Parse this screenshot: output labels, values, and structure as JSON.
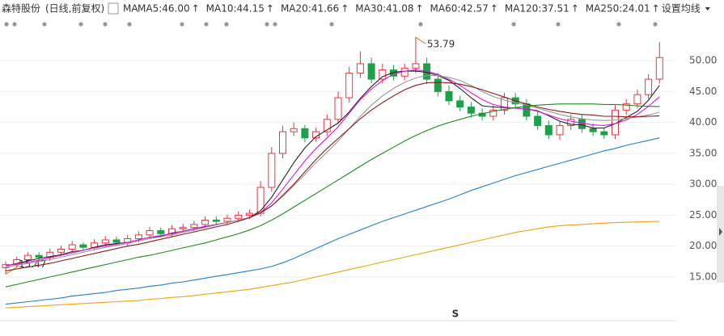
{
  "chart_data": {
    "type": "candlestick",
    "title": "森特股份",
    "subtitle": "(日线,前复权)",
    "ma_label": "MA",
    "settings_label": "设置均线",
    "max_label": "53.79",
    "min_label": "15.47",
    "bottom_marker": "S",
    "up_color": "#f0323c",
    "down_color": "#1ea04a",
    "ylim": [
      9.5,
      57.2
    ],
    "yticks": [
      {
        "value": 15,
        "label": "15.00"
      },
      {
        "value": 20,
        "label": "20.00"
      },
      {
        "value": 25,
        "label": "25.00"
      },
      {
        "value": 30,
        "label": "30.00"
      },
      {
        "value": 35,
        "label": "35.00"
      },
      {
        "value": 40,
        "label": "40.00"
      },
      {
        "value": 45,
        "label": "45.00"
      },
      {
        "value": 50,
        "label": "50.00"
      }
    ],
    "grid": true,
    "candles": {
      "open": [
        16.5,
        17.0,
        17.8,
        18.5,
        18.2,
        19.0,
        19.5,
        20.2,
        19.8,
        20.5,
        21.0,
        20.6,
        21.2,
        21.8,
        22.5,
        22.0,
        22.8,
        23.0,
        23.5,
        24.2,
        24.0,
        24.5,
        25.0,
        25.3,
        29.5,
        35.0,
        38.5,
        39.0,
        37.5,
        38.5,
        40.5,
        44.0,
        48.0,
        49.5,
        47.0,
        48.5,
        47.5,
        48.8,
        49.5,
        47.0,
        45.0,
        43.5,
        42.5,
        41.5,
        41.0,
        42.0,
        44.0,
        43.0,
        41.0,
        39.5,
        38.0,
        39.5,
        40.5,
        39.0,
        38.5,
        38.0,
        42.0,
        43.0,
        44.5,
        47.0
      ],
      "high": [
        17.5,
        18.3,
        19.0,
        19.0,
        19.6,
        20.1,
        20.8,
        20.6,
        21.1,
        21.6,
        21.5,
        21.8,
        22.4,
        23.1,
        23.0,
        23.4,
        23.6,
        24.1,
        24.8,
        24.8,
        25.1,
        25.6,
        25.9,
        30.5,
        36.0,
        39.5,
        40.0,
        39.6,
        39.2,
        41.3,
        45.0,
        49.0,
        51.5,
        50.5,
        49.5,
        49.3,
        49.5,
        53.79,
        50.5,
        48.0,
        46.0,
        44.3,
        43.3,
        42.3,
        42.8,
        44.8,
        44.8,
        43.8,
        41.8,
        40.3,
        40.2,
        41.3,
        41.3,
        39.8,
        39.2,
        42.8,
        43.8,
        45.3,
        47.8,
        53.0
      ],
      "low": [
        15.47,
        16.5,
        17.2,
        17.6,
        17.6,
        18.4,
        18.9,
        19.3,
        19.3,
        19.9,
        20.0,
        20.0,
        20.6,
        21.2,
        21.4,
        21.5,
        22.2,
        22.4,
        22.9,
        23.5,
        23.4,
        24.0,
        24.4,
        24.8,
        28.8,
        34.2,
        37.8,
        36.8,
        36.9,
        37.8,
        39.8,
        43.2,
        47.2,
        46.3,
        46.3,
        46.8,
        46.8,
        48.0,
        46.2,
        44.2,
        42.8,
        41.8,
        40.8,
        40.3,
        40.3,
        41.3,
        42.3,
        40.3,
        38.8,
        37.3,
        37.2,
        38.8,
        38.3,
        37.8,
        37.3,
        37.3,
        41.2,
        42.3,
        43.8,
        46.3
      ],
      "close": [
        17.0,
        17.8,
        18.5,
        18.2,
        19.0,
        19.5,
        20.2,
        19.8,
        20.5,
        21.0,
        20.6,
        21.2,
        21.8,
        22.5,
        22.0,
        22.8,
        23.0,
        23.5,
        24.2,
        24.0,
        24.5,
        25.0,
        25.3,
        29.5,
        35.0,
        38.5,
        39.0,
        37.5,
        38.5,
        40.5,
        44.0,
        48.0,
        49.5,
        47.0,
        48.5,
        47.5,
        48.8,
        49.5,
        47.0,
        45.0,
        43.5,
        42.5,
        41.5,
        41.0,
        42.0,
        44.0,
        43.0,
        41.0,
        39.5,
        38.0,
        39.5,
        40.5,
        39.0,
        38.5,
        38.0,
        42.0,
        43.0,
        44.5,
        47.0,
        50.5
      ]
    },
    "series": [
      {
        "name": "MA5:46.00",
        "trend": "↑",
        "color": "#222222",
        "values": [
          16.8,
          17.2,
          17.6,
          18.0,
          18.3,
          18.6,
          19.1,
          19.3,
          19.8,
          20.2,
          20.4,
          20.6,
          21.0,
          21.4,
          21.6,
          22.1,
          22.4,
          22.8,
          23.1,
          23.5,
          23.8,
          24.2,
          24.6,
          25.7,
          27.9,
          30.7,
          33.5,
          35.9,
          37.7,
          38.8,
          39.9,
          41.7,
          43.9,
          45.8,
          47.4,
          48.1,
          48.3,
          48.3,
          48.1,
          47.6,
          46.8,
          45.5,
          44.0,
          42.7,
          42.5,
          42.4,
          42.3,
          42.2,
          41.9,
          41.1,
          40.2,
          39.7,
          39.6,
          39.1,
          39.1,
          39.8,
          40.8,
          41.8,
          43.6,
          46.0
        ]
      },
      {
        "name": "MA10:44.15",
        "trend": "↑",
        "color": "#e315e3",
        "values": [
          16.8,
          17.1,
          17.4,
          17.7,
          18.1,
          18.5,
          18.9,
          19.3,
          19.7,
          20.0,
          20.3,
          20.6,
          21.0,
          21.4,
          21.7,
          22.0,
          22.4,
          22.8,
          23.2,
          23.5,
          23.8,
          24.2,
          24.6,
          25.4,
          27.0,
          29.2,
          31.5,
          33.8,
          35.8,
          37.5,
          39.3,
          41.5,
          43.7,
          45.4,
          46.8,
          47.8,
          48.3,
          48.5,
          48.3,
          47.8,
          47.0,
          46.0,
          44.8,
          43.7,
          42.9,
          42.5,
          42.3,
          42.2,
          41.8,
          41.2,
          40.6,
          40.2,
          39.9,
          39.6,
          39.5,
          39.8,
          40.4,
          41.3,
          42.6,
          44.15
        ]
      },
      {
        "name": "MA20:41.66",
        "trend": "↑",
        "color": "#999999",
        "values": [
          16.6,
          16.9,
          17.2,
          17.5,
          17.8,
          18.2,
          18.6,
          19.0,
          19.4,
          19.8,
          20.1,
          20.4,
          20.8,
          21.2,
          21.5,
          21.8,
          22.2,
          22.6,
          23.0,
          23.4,
          23.8,
          24.2,
          24.6,
          25.3,
          26.5,
          28.0,
          29.8,
          31.6,
          33.5,
          35.2,
          37.0,
          39.0,
          41.0,
          42.8,
          44.3,
          45.5,
          46.5,
          47.2,
          47.6,
          47.6,
          47.3,
          46.8,
          46.0,
          45.0,
          44.2,
          43.6,
          43.2,
          42.8,
          42.3,
          41.8,
          41.3,
          40.9,
          40.6,
          40.4,
          40.3,
          40.4,
          40.6,
          40.9,
          41.2,
          41.66
        ]
      },
      {
        "name": "MA30:41.08",
        "trend": "↑",
        "color": "#8b1a1a",
        "values": [
          16.0,
          16.3,
          16.6,
          16.9,
          17.2,
          17.6,
          18.0,
          18.4,
          18.8,
          19.2,
          19.6,
          20.0,
          20.3,
          20.7,
          21.1,
          21.5,
          21.9,
          22.3,
          22.7,
          23.1,
          23.5,
          24.0,
          24.6,
          25.4,
          26.5,
          28.2,
          30.0,
          32.0,
          34.0,
          35.8,
          37.4,
          39.0,
          40.6,
          42.0,
          43.2,
          44.3,
          45.3,
          46.0,
          46.4,
          46.5,
          46.4,
          46.2,
          45.8,
          45.3,
          44.7,
          44.1,
          43.5,
          43.0,
          42.5,
          42.1,
          41.8,
          41.5,
          41.3,
          41.2,
          41.0,
          41.0,
          40.9,
          40.9,
          41.0,
          41.08
        ]
      },
      {
        "name": "MA60:42.57",
        "trend": "↑",
        "color": "#1c8c1c",
        "values": [
          13.4,
          13.8,
          14.2,
          14.6,
          15.0,
          15.4,
          15.8,
          16.2,
          16.6,
          17.0,
          17.4,
          17.8,
          18.2,
          18.5,
          18.9,
          19.3,
          19.7,
          20.1,
          20.5,
          21.0,
          21.5,
          22.0,
          22.6,
          23.3,
          24.2,
          25.2,
          26.3,
          27.4,
          28.5,
          29.6,
          30.7,
          31.8,
          32.9,
          34.0,
          35.0,
          36.0,
          37.0,
          37.9,
          38.7,
          39.4,
          40.0,
          40.5,
          41.0,
          41.4,
          41.8,
          42.1,
          42.4,
          42.6,
          42.8,
          42.9,
          43.0,
          43.0,
          43.0,
          43.0,
          42.9,
          42.9,
          42.8,
          42.7,
          42.6,
          42.57
        ]
      },
      {
        "name": "MA120:37.51",
        "trend": "↑",
        "color": "#1f7fd6",
        "values": [
          10.6,
          10.8,
          11.0,
          11.2,
          11.4,
          11.6,
          11.9,
          12.1,
          12.3,
          12.5,
          12.8,
          13.0,
          13.2,
          13.5,
          13.7,
          14.0,
          14.2,
          14.5,
          14.8,
          15.1,
          15.4,
          15.7,
          16.0,
          16.3,
          16.7,
          17.3,
          18.0,
          18.8,
          19.6,
          20.4,
          21.2,
          21.9,
          22.6,
          23.3,
          24.0,
          24.6,
          25.2,
          25.8,
          26.4,
          27.0,
          27.6,
          28.3,
          29.0,
          29.6,
          30.2,
          30.8,
          31.4,
          31.9,
          32.4,
          32.9,
          33.4,
          33.9,
          34.4,
          34.9,
          35.4,
          35.8,
          36.3,
          36.7,
          37.1,
          37.51
        ]
      },
      {
        "name": "MA250:24.01",
        "trend": "↑",
        "color": "#f0a30a",
        "values": [
          10.0,
          10.1,
          10.2,
          10.3,
          10.4,
          10.5,
          10.6,
          10.7,
          10.8,
          10.9,
          11.0,
          11.1,
          11.2,
          11.4,
          11.5,
          11.7,
          11.8,
          12.0,
          12.2,
          12.4,
          12.6,
          12.8,
          13.0,
          13.3,
          13.6,
          13.9,
          14.2,
          14.6,
          15.0,
          15.4,
          15.8,
          16.2,
          16.6,
          17.0,
          17.4,
          17.8,
          18.2,
          18.6,
          19.0,
          19.4,
          19.8,
          20.2,
          20.6,
          21.0,
          21.4,
          21.8,
          22.2,
          22.5,
          22.8,
          23.1,
          23.3,
          23.4,
          23.5,
          23.6,
          23.7,
          23.8,
          23.85,
          23.9,
          23.95,
          24.01
        ]
      }
    ]
  }
}
